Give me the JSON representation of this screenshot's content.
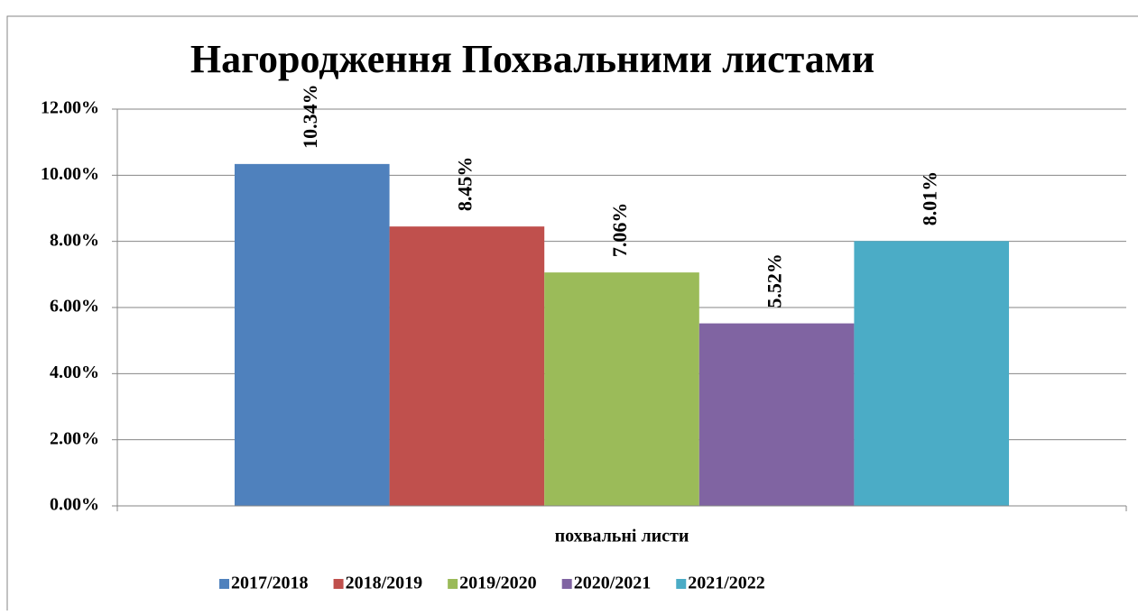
{
  "chart_data": {
    "type": "bar",
    "title": "Нагородження  Похвальними листами",
    "categories": [
      "похвальні листи"
    ],
    "series": [
      {
        "name": "2017/2018",
        "color": "#4f81bd",
        "values": [
          10.34
        ],
        "value_labels": [
          "10.34%"
        ]
      },
      {
        "name": "2018/2019",
        "color": "#c0504d",
        "values": [
          8.45
        ],
        "value_labels": [
          "8.45%"
        ]
      },
      {
        "name": "2019/2020",
        "color": "#9bbb59",
        "values": [
          7.06
        ],
        "value_labels": [
          "7.06%"
        ]
      },
      {
        "name": "2020/2021",
        "color": "#8064a2",
        "values": [
          5.52
        ],
        "value_labels": [
          "5.52%"
        ]
      },
      {
        "name": "2021/2022",
        "color": "#4bacc6",
        "values": [
          8.01
        ],
        "value_labels": [
          "8.01%"
        ]
      }
    ],
    "ylim": [
      0,
      12
    ],
    "yticks": [
      {
        "value": 0,
        "label": "0.00%"
      },
      {
        "value": 2,
        "label": "2.00%"
      },
      {
        "value": 4,
        "label": "4.00%"
      },
      {
        "value": 6,
        "label": "6.00%"
      },
      {
        "value": 8,
        "label": "8.00%"
      },
      {
        "value": 10,
        "label": "10.00%"
      },
      {
        "value": 12,
        "label": "12.00%"
      }
    ],
    "grid": true,
    "legend": "bottom"
  }
}
